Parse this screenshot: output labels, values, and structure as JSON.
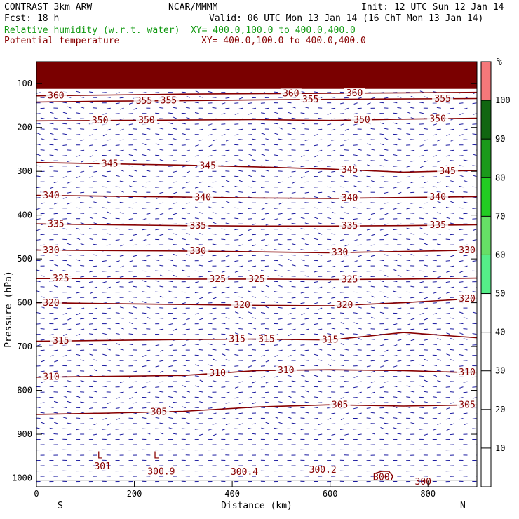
{
  "header": {
    "model": "CONTRAST  3km ARW",
    "org": "NCAR/MMMM",
    "init": "Init: 12 UTC Sun 12 Jan 14",
    "fcst": "Fcst:   18 h",
    "valid": "Valid: 06 UTC Mon 13 Jan 14 (16 ChT Mon 13 Jan 14)",
    "rh_label": "Relative humidity (w.r.t. water)",
    "rh_xy": "XY= 400.0,100.0 to 400.0,400.0",
    "theta_label": "Potential temperature",
    "theta_xy": "XY= 400.0,100.0 to 400.0,400.0"
  },
  "colors": {
    "rh_text": "#119911",
    "theta_text": "#880000",
    "contour": "#880000",
    "wind": "#1a1aa0",
    "top_band": "#7a0000"
  },
  "chart_data": {
    "type": "cross-section",
    "xlabel": "Distance (km)",
    "ylabel": "Pressure (hPa)",
    "xlim": [
      0,
      900
    ],
    "ylim": [
      1020,
      50
    ],
    "x_ticks": [
      0,
      200,
      400,
      600,
      800
    ],
    "y_ticks": [
      100,
      200,
      300,
      400,
      500,
      600,
      700,
      800,
      900,
      1000
    ],
    "left_end_label": "S",
    "right_end_label": "N",
    "rh_bands": [
      {
        "lo": 90,
        "hi": 100,
        "color": "#116611"
      },
      {
        "lo": 80,
        "hi": 90,
        "color": "#1b9a1b"
      },
      {
        "lo": 70,
        "hi": 80,
        "color": "#22cc22"
      },
      {
        "lo": 60,
        "hi": 70,
        "color": "#66e066"
      },
      {
        "lo": 50,
        "hi": 60,
        "color": "#55ee88"
      },
      {
        "lo": 100,
        "hi": 110,
        "color": "#f5787a"
      }
    ],
    "colorbar": {
      "unit": "%",
      "labels": [
        "100",
        "90",
        "80",
        "70",
        "60",
        "50",
        "40",
        "30",
        "20",
        "10"
      ],
      "segments": [
        {
          "lo": 100,
          "hi": 110,
          "color": "#f5787a"
        },
        {
          "lo": 90,
          "hi": 100,
          "color": "#116611"
        },
        {
          "lo": 80,
          "hi": 90,
          "color": "#1b9a1b"
        },
        {
          "lo": 70,
          "hi": 80,
          "color": "#22cc22"
        },
        {
          "lo": 60,
          "hi": 70,
          "color": "#66e066"
        },
        {
          "lo": 50,
          "hi": 60,
          "color": "#55ee88"
        }
      ]
    },
    "theta_contours": [
      {
        "value": 360,
        "points": [
          [
            0,
            128
          ],
          [
            150,
            126
          ],
          [
            300,
            124
          ],
          [
            450,
            123
          ],
          [
            600,
            122
          ],
          [
            750,
            121
          ],
          [
            900,
            120
          ]
        ],
        "labels": [
          [
            40,
            "360"
          ],
          [
            520,
            "360"
          ],
          [
            650,
            "360"
          ]
        ]
      },
      {
        "value": 355,
        "points": [
          [
            0,
            142
          ],
          [
            150,
            140
          ],
          [
            300,
            139
          ],
          [
            450,
            137
          ],
          [
            600,
            136
          ],
          [
            750,
            135
          ],
          [
            900,
            134
          ]
        ],
        "labels": [
          [
            220,
            "355"
          ],
          [
            270,
            "355"
          ],
          [
            560,
            "355"
          ],
          [
            830,
            "355"
          ]
        ]
      },
      {
        "value": 350,
        "points": [
          [
            0,
            185
          ],
          [
            150,
            184
          ],
          [
            300,
            183
          ],
          [
            450,
            182
          ],
          [
            600,
            184
          ],
          [
            750,
            181
          ],
          [
            900,
            179
          ]
        ],
        "labels": [
          [
            130,
            "350"
          ],
          [
            225,
            "350"
          ],
          [
            665,
            "350"
          ],
          [
            820,
            "350"
          ]
        ]
      },
      {
        "value": 345,
        "points": [
          [
            0,
            280
          ],
          [
            150,
            283
          ],
          [
            300,
            286
          ],
          [
            450,
            290
          ],
          [
            600,
            295
          ],
          [
            750,
            302
          ],
          [
            900,
            298
          ]
        ],
        "labels": [
          [
            150,
            "345"
          ],
          [
            350,
            "345"
          ],
          [
            640,
            "345"
          ],
          [
            840,
            "345"
          ]
        ]
      },
      {
        "value": 340,
        "points": [
          [
            0,
            355
          ],
          [
            150,
            357
          ],
          [
            300,
            359
          ],
          [
            450,
            361
          ],
          [
            600,
            362
          ],
          [
            750,
            360
          ],
          [
            900,
            358
          ]
        ],
        "labels": [
          [
            30,
            "340"
          ],
          [
            340,
            "340"
          ],
          [
            640,
            "340"
          ],
          [
            820,
            "340"
          ]
        ]
      },
      {
        "value": 335,
        "points": [
          [
            0,
            420
          ],
          [
            150,
            422
          ],
          [
            300,
            424
          ],
          [
            450,
            425
          ],
          [
            600,
            425
          ],
          [
            750,
            424
          ],
          [
            900,
            422
          ]
        ],
        "labels": [
          [
            40,
            "335"
          ],
          [
            330,
            "335"
          ],
          [
            640,
            "335"
          ],
          [
            820,
            "335"
          ]
        ]
      },
      {
        "value": 330,
        "points": [
          [
            0,
            480
          ],
          [
            150,
            481
          ],
          [
            300,
            482
          ],
          [
            450,
            484
          ],
          [
            600,
            486
          ],
          [
            750,
            483
          ],
          [
            900,
            480
          ]
        ],
        "labels": [
          [
            30,
            "330"
          ],
          [
            330,
            "330"
          ],
          [
            620,
            "330"
          ],
          [
            880,
            "330"
          ]
        ]
      },
      {
        "value": 325,
        "points": [
          [
            0,
            545
          ],
          [
            150,
            545
          ],
          [
            300,
            546
          ],
          [
            450,
            546
          ],
          [
            600,
            547
          ],
          [
            750,
            546
          ],
          [
            900,
            544
          ]
        ],
        "labels": [
          [
            50,
            "325"
          ],
          [
            370,
            "325"
          ],
          [
            450,
            "325"
          ],
          [
            640,
            "325"
          ]
        ]
      },
      {
        "value": 320,
        "points": [
          [
            0,
            600
          ],
          [
            150,
            602
          ],
          [
            300,
            604
          ],
          [
            450,
            606
          ],
          [
            600,
            607
          ],
          [
            750,
            600
          ],
          [
            900,
            590
          ]
        ],
        "labels": [
          [
            30,
            "320"
          ],
          [
            420,
            "320"
          ],
          [
            630,
            "320"
          ],
          [
            880,
            "320"
          ]
        ]
      },
      {
        "value": 315,
        "points": [
          [
            0,
            688
          ],
          [
            150,
            686
          ],
          [
            300,
            684
          ],
          [
            450,
            683
          ],
          [
            600,
            685
          ],
          [
            750,
            668
          ],
          [
            900,
            680
          ]
        ],
        "labels": [
          [
            50,
            "315"
          ],
          [
            410,
            "315"
          ],
          [
            470,
            "315"
          ],
          [
            600,
            "315"
          ]
        ]
      },
      {
        "value": 310,
        "points": [
          [
            0,
            770
          ],
          [
            150,
            768
          ],
          [
            300,
            766
          ],
          [
            450,
            755
          ],
          [
            600,
            753
          ],
          [
            750,
            755
          ],
          [
            900,
            760
          ]
        ],
        "labels": [
          [
            30,
            "310"
          ],
          [
            370,
            "310"
          ],
          [
            510,
            "310"
          ],
          [
            880,
            "310"
          ]
        ]
      },
      {
        "value": 305,
        "points": [
          [
            0,
            855
          ],
          [
            150,
            852
          ],
          [
            300,
            848
          ],
          [
            450,
            838
          ],
          [
            600,
            833
          ],
          [
            750,
            836
          ],
          [
            900,
            833
          ]
        ],
        "labels": [
          [
            250,
            "305"
          ],
          [
            620,
            "305"
          ],
          [
            880,
            "305"
          ]
        ]
      }
    ],
    "surface_labels": [
      {
        "x": 130,
        "p": 955,
        "text": "L"
      },
      {
        "x": 245,
        "p": 955,
        "text": "L"
      },
      {
        "x": 135,
        "p": 980,
        "text": "301"
      },
      {
        "x": 255,
        "p": 992,
        "text": "300.9"
      },
      {
        "x": 425,
        "p": 993,
        "text": "300.4"
      },
      {
        "x": 585,
        "p": 988,
        "text": "300.2"
      },
      {
        "x": 705,
        "p": 1005,
        "text": "300"
      },
      {
        "x": 790,
        "p": 1015,
        "text": "300"
      }
    ]
  }
}
